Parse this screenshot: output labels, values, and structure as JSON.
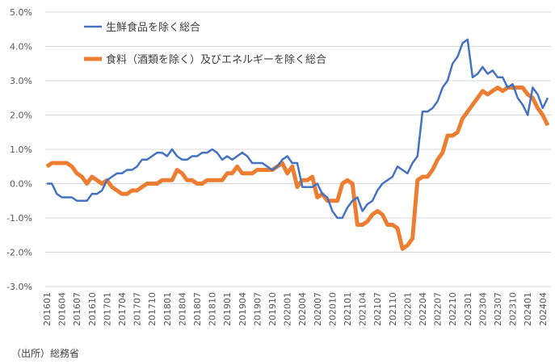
{
  "chart_data": {
    "type": "line",
    "title": "",
    "xlabel": "",
    "ylabel": "",
    "ylim": [
      -3.0,
      5.0
    ],
    "ytick_step": 1.0,
    "y_ticks": [
      "-3.0%",
      "-2.0%",
      "-1.0%",
      "0.0%",
      "1.0%",
      "2.0%",
      "3.0%",
      "4.0%",
      "5.0%"
    ],
    "x_start": "201601",
    "x_tick_labels": [
      "201601",
      "201604",
      "201607",
      "201610",
      "201701",
      "201704",
      "201707",
      "201710",
      "201801",
      "201804",
      "201807",
      "201810",
      "201901",
      "201904",
      "201907",
      "201910",
      "202001",
      "202004",
      "202007",
      "202010",
      "202101",
      "202104",
      "202107",
      "202110",
      "202201",
      "202204",
      "202207",
      "202210",
      "202301",
      "202304",
      "202307",
      "202310",
      "202401",
      "202404"
    ],
    "grid": true,
    "legend_placement": "top-left",
    "series": [
      {
        "name": "生鮮食品を除く総合",
        "color": "#4472c4",
        "values": [
          0.0,
          0.0,
          -0.3,
          -0.4,
          -0.4,
          -0.4,
          -0.5,
          -0.5,
          -0.5,
          -0.3,
          -0.3,
          -0.2,
          0.1,
          0.2,
          0.3,
          0.3,
          0.4,
          0.4,
          0.5,
          0.7,
          0.7,
          0.8,
          0.9,
          0.9,
          0.8,
          1.0,
          0.8,
          0.7,
          0.7,
          0.8,
          0.8,
          0.9,
          0.9,
          1.0,
          0.9,
          0.7,
          0.8,
          0.7,
          0.8,
          0.9,
          0.8,
          0.6,
          0.6,
          0.6,
          0.5,
          0.4,
          0.5,
          0.7,
          0.8,
          0.6,
          0.6,
          -0.1,
          -0.1,
          -0.1,
          0.0,
          -0.3,
          -0.4,
          -0.8,
          -1.0,
          -1.0,
          -0.7,
          -0.5,
          -0.4,
          -0.8,
          -0.6,
          -0.5,
          -0.2,
          0.0,
          0.1,
          0.2,
          0.5,
          0.4,
          0.3,
          0.6,
          0.8,
          2.1,
          2.1,
          2.2,
          2.4,
          2.8,
          3.0,
          3.5,
          3.7,
          4.1,
          4.2,
          3.1,
          3.2,
          3.4,
          3.2,
          3.3,
          3.1,
          3.1,
          2.8,
          2.9,
          2.5,
          2.3,
          2.0,
          2.8,
          2.6,
          2.2,
          2.5
        ]
      },
      {
        "name": "食料（酒類を除く）及びエネルギーを除く総合",
        "color": "#ed7d31",
        "values": [
          0.5,
          0.6,
          0.6,
          0.6,
          0.6,
          0.5,
          0.3,
          0.2,
          0.0,
          0.2,
          0.1,
          0.0,
          0.1,
          -0.1,
          -0.2,
          -0.3,
          -0.3,
          -0.2,
          -0.2,
          -0.1,
          0.0,
          0.0,
          0.0,
          0.1,
          0.1,
          0.1,
          0.4,
          0.3,
          0.1,
          0.1,
          0.0,
          0.0,
          0.1,
          0.1,
          0.1,
          0.1,
          0.3,
          0.3,
          0.5,
          0.3,
          0.3,
          0.3,
          0.4,
          0.4,
          0.4,
          0.4,
          0.5,
          0.6,
          0.3,
          0.5,
          -0.1,
          0.1,
          0.1,
          0.2,
          -0.4,
          -0.3,
          -0.5,
          -0.5,
          -0.5,
          0.0,
          0.1,
          0.0,
          -1.2,
          -1.2,
          -1.1,
          -0.9,
          -0.8,
          -0.9,
          -1.2,
          -1.2,
          -1.3,
          -1.9,
          -1.8,
          -1.6,
          0.1,
          0.2,
          0.2,
          0.4,
          0.7,
          0.9,
          1.4,
          1.4,
          1.5,
          1.9,
          2.1,
          2.3,
          2.5,
          2.7,
          2.6,
          2.7,
          2.8,
          2.7,
          2.8,
          2.8,
          2.8,
          2.8,
          2.6,
          2.5,
          2.2,
          2.0,
          1.7
        ]
      }
    ]
  },
  "source_note": "（出所）総務省"
}
